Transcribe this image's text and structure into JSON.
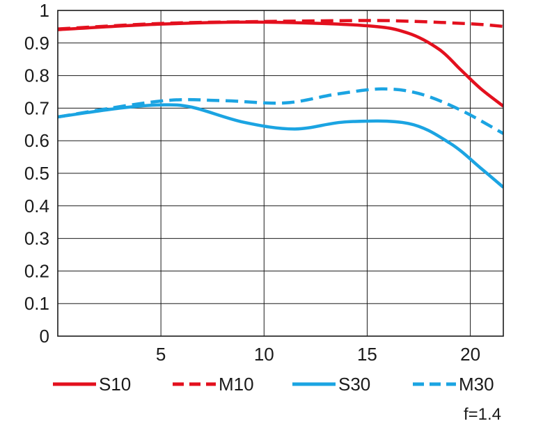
{
  "chart_data": {
    "type": "line",
    "title": "",
    "xlabel": "",
    "ylabel": "",
    "xlim": [
      0,
      21.6
    ],
    "ylim": [
      0,
      1
    ],
    "x_ticks": [
      5,
      10,
      15,
      20
    ],
    "x_tick_labels": [
      "5",
      "10",
      "15",
      "20"
    ],
    "y_ticks": [
      0,
      0.1,
      0.2,
      0.3,
      0.4,
      0.5,
      0.6,
      0.7,
      0.8,
      0.9,
      1
    ],
    "y_tick_labels": [
      "0",
      "0.1",
      "0.2",
      "0.3",
      "0.4",
      "0.5",
      "0.6",
      "0.7",
      "0.8",
      "0.9",
      "1"
    ],
    "grid": true,
    "legend_position": "bottom",
    "annotation": "f=1.4",
    "series": [
      {
        "name": "S10",
        "color": "#e3101e",
        "dash": false,
        "points": [
          [
            0,
            0.941
          ],
          [
            5,
            0.958
          ],
          [
            10,
            0.964
          ],
          [
            15,
            0.953
          ],
          [
            17,
            0.93
          ],
          [
            18.5,
            0.88
          ],
          [
            19.5,
            0.82
          ],
          [
            20.5,
            0.76
          ],
          [
            21.6,
            0.706
          ]
        ]
      },
      {
        "name": "M10",
        "color": "#e3101e",
        "dash": true,
        "points": [
          [
            0,
            0.943
          ],
          [
            5,
            0.96
          ],
          [
            10,
            0.966
          ],
          [
            15,
            0.969
          ],
          [
            17,
            0.967
          ],
          [
            19,
            0.962
          ],
          [
            20.5,
            0.957
          ],
          [
            21.6,
            0.951
          ]
        ]
      },
      {
        "name": "S30",
        "color": "#1ba4e2",
        "dash": false,
        "points": [
          [
            0,
            0.673
          ],
          [
            3,
            0.7
          ],
          [
            5,
            0.71
          ],
          [
            6.5,
            0.703
          ],
          [
            9,
            0.657
          ],
          [
            11.5,
            0.636
          ],
          [
            14,
            0.658
          ],
          [
            17,
            0.653
          ],
          [
            19,
            0.593
          ],
          [
            20.5,
            0.516
          ],
          [
            21.6,
            0.457
          ]
        ]
      },
      {
        "name": "M30",
        "color": "#1ba4e2",
        "dash": true,
        "points": [
          [
            0,
            0.673
          ],
          [
            5,
            0.722
          ],
          [
            8,
            0.723
          ],
          [
            11,
            0.716
          ],
          [
            13.5,
            0.743
          ],
          [
            15.7,
            0.759
          ],
          [
            17.5,
            0.745
          ],
          [
            19.5,
            0.695
          ],
          [
            21.6,
            0.622
          ]
        ]
      }
    ]
  }
}
